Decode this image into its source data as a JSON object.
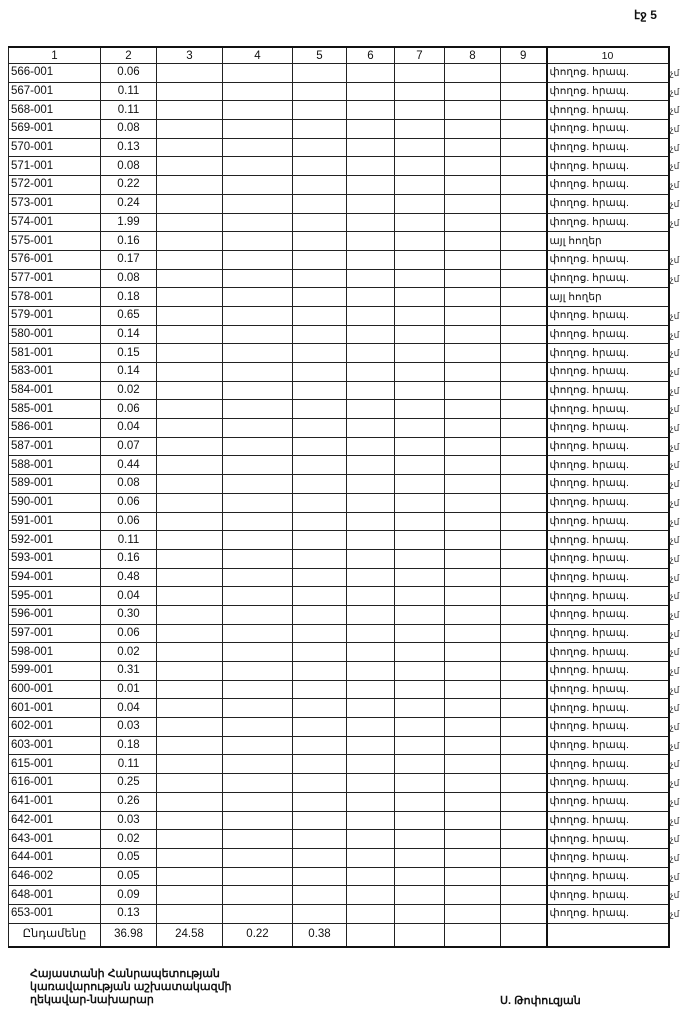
{
  "page_label": "էջ 5",
  "header": [
    "1",
    "2",
    "3",
    "4",
    "5",
    "6",
    "7",
    "8",
    "9",
    "10"
  ],
  "rows": [
    {
      "id": "566-001",
      "area": "0.06",
      "type": "փողոց. հրապ.",
      "mark": "չմ"
    },
    {
      "id": "567-001",
      "area": "0.11",
      "type": "փողոց. հրապ.",
      "mark": "չմ"
    },
    {
      "id": "568-001",
      "area": "0.11",
      "type": "փողոց. հրապ.",
      "mark": "չմ"
    },
    {
      "id": "569-001",
      "area": "0.08",
      "type": "փողոց. հրապ.",
      "mark": "չմ"
    },
    {
      "id": "570-001",
      "area": "0.13",
      "type": "փողոց. հրապ.",
      "mark": "չմ"
    },
    {
      "id": "571-001",
      "area": "0.08",
      "type": "փողոց. հրապ.",
      "mark": "չմ"
    },
    {
      "id": "572-001",
      "area": "0.22",
      "type": "փողոց. հրապ.",
      "mark": "չմ"
    },
    {
      "id": "573-001",
      "area": "0.24",
      "type": "փողոց. հրապ.",
      "mark": "չմ"
    },
    {
      "id": "574-001",
      "area": "1.99",
      "type": "փողոց. հրապ.",
      "mark": "չմ"
    },
    {
      "id": "575-001",
      "area": "0.16",
      "type": "այլ հողեր",
      "mark": ""
    },
    {
      "id": "576-001",
      "area": "0.17",
      "type": "փողոց. հրապ.",
      "mark": "չմ"
    },
    {
      "id": "577-001",
      "area": "0.08",
      "type": "փողոց. հրապ.",
      "mark": "չմ"
    },
    {
      "id": "578-001",
      "area": "0.18",
      "type": "այլ հողեր",
      "mark": ""
    },
    {
      "id": "579-001",
      "area": "0.65",
      "type": "փողոց. հրապ.",
      "mark": "չմ"
    },
    {
      "id": "580-001",
      "area": "0.14",
      "type": "փողոց. հրապ.",
      "mark": "չմ"
    },
    {
      "id": "581-001",
      "area": "0.15",
      "type": "փողոց. հրապ.",
      "mark": "չմ"
    },
    {
      "id": "583-001",
      "area": "0.14",
      "type": "փողոց. հրապ.",
      "mark": "չմ"
    },
    {
      "id": "584-001",
      "area": "0.02",
      "type": "փողոց. հրապ.",
      "mark": "չմ"
    },
    {
      "id": "585-001",
      "area": "0.06",
      "type": "փողոց. հրապ.",
      "mark": "չմ"
    },
    {
      "id": "586-001",
      "area": "0.04",
      "type": "փողոց. հրապ.",
      "mark": "չմ"
    },
    {
      "id": "587-001",
      "area": "0.07",
      "type": "փողոց. հրապ.",
      "mark": "չմ"
    },
    {
      "id": "588-001",
      "area": "0.44",
      "type": "փողոց. հրապ.",
      "mark": "չմ"
    },
    {
      "id": "589-001",
      "area": "0.08",
      "type": "փողոց. հրապ.",
      "mark": "չմ"
    },
    {
      "id": "590-001",
      "area": "0.06",
      "type": "փողոց. հրապ.",
      "mark": "չմ"
    },
    {
      "id": "591-001",
      "area": "0.06",
      "type": "փողոց. հրապ.",
      "mark": "չմ"
    },
    {
      "id": "592-001",
      "area": "0.11",
      "type": "փողոց. հրապ.",
      "mark": "չմ"
    },
    {
      "id": "593-001",
      "area": "0.16",
      "type": "փողոց. հրապ.",
      "mark": "չմ"
    },
    {
      "id": "594-001",
      "area": "0.48",
      "type": "փողոց. հրապ.",
      "mark": "չմ"
    },
    {
      "id": "595-001",
      "area": "0.04",
      "type": "փողոց. հրապ.",
      "mark": "չմ"
    },
    {
      "id": "596-001",
      "area": "0.30",
      "type": "փողոց. հրապ.",
      "mark": "չմ"
    },
    {
      "id": "597-001",
      "area": "0.06",
      "type": "փողոց. հրապ.",
      "mark": "չմ"
    },
    {
      "id": "598-001",
      "area": "0.02",
      "type": "փողոց. հրապ.",
      "mark": "չմ"
    },
    {
      "id": "599-001",
      "area": "0.31",
      "type": "փողոց. հրապ.",
      "mark": "չմ"
    },
    {
      "id": "600-001",
      "area": "0.01",
      "type": "փողոց. հրապ.",
      "mark": "չմ"
    },
    {
      "id": "601-001",
      "area": "0.04",
      "type": "փողոց. հրապ.",
      "mark": "չմ"
    },
    {
      "id": "602-001",
      "area": "0.03",
      "type": "փողոց. հրապ.",
      "mark": "չմ"
    },
    {
      "id": "603-001",
      "area": "0.18",
      "type": "փողոց. հրապ.",
      "mark": "չմ"
    },
    {
      "id": "615-001",
      "area": "0.11",
      "type": "փողոց. հրապ.",
      "mark": "չմ"
    },
    {
      "id": "616-001",
      "area": "0.25",
      "type": "փողոց. հրապ.",
      "mark": "չմ"
    },
    {
      "id": "641-001",
      "area": "0.26",
      "type": "փողոց. հրապ.",
      "mark": "չմ"
    },
    {
      "id": "642-001",
      "area": "0.03",
      "type": "փողոց. հրապ.",
      "mark": "չմ"
    },
    {
      "id": "643-001",
      "area": "0.02",
      "type": "փողոց. հրապ.",
      "mark": "չմ"
    },
    {
      "id": "644-001",
      "area": "0.05",
      "type": "փողոց. հրապ.",
      "mark": "չմ"
    },
    {
      "id": "646-002",
      "area": "0.05",
      "type": "փողոց. հրապ.",
      "mark": "չմ"
    },
    {
      "id": "648-001",
      "area": "0.09",
      "type": "փողոց. հրապ.",
      "mark": "չմ"
    },
    {
      "id": "653-001",
      "area": "0.13",
      "type": "փողոց. հրապ.",
      "mark": "չմ"
    }
  ],
  "total": {
    "label": "Ընդամենը",
    "c2": "36.98",
    "c3": "24.58",
    "c4": "0.22",
    "c5": "0.38"
  },
  "footer": {
    "line1": "Հայաստանի Հանրապետության",
    "line2": "կառավարության աշխատակազմի",
    "line3": "ղեկավար-նախարար",
    "signature": "Ս. Թոփուզյան"
  }
}
